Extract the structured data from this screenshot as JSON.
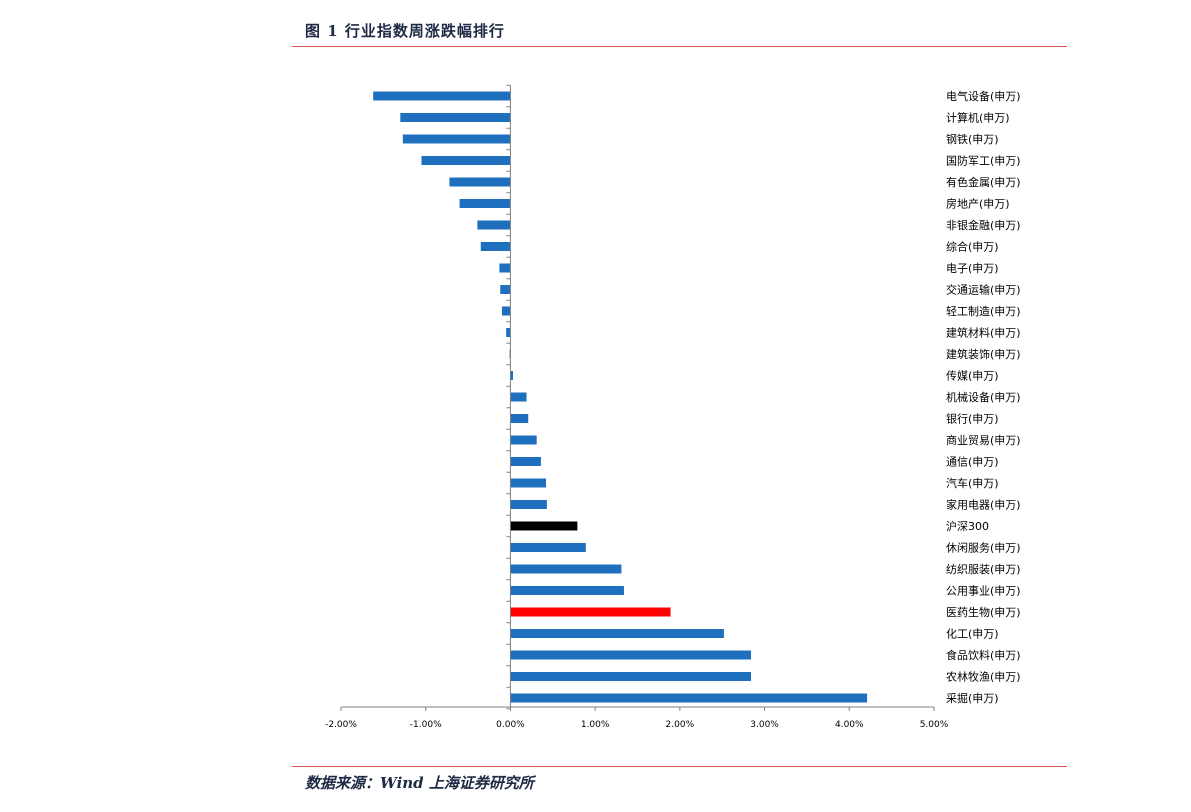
{
  "header": {
    "title": "图 1 行业指数周涨跌幅排行"
  },
  "footer": {
    "source": "数据来源：Wind  上海证券研究所"
  },
  "chart_data": {
    "type": "bar",
    "orientation": "horizontal",
    "title": "图 1 行业指数周涨跌幅排行",
    "xlim": [
      -2.0,
      5.0
    ],
    "x_ticks": [
      -2.0,
      -1.0,
      0.0,
      1.0,
      2.0,
      3.0,
      4.0,
      5.0
    ],
    "tick_labels": [
      "-2.00%",
      "-1.00%",
      "0.00%",
      "1.00%",
      "2.00%",
      "3.00%",
      "4.00%",
      "5.00%"
    ],
    "unit": "%",
    "grid": false,
    "colors": {
      "default": "#1f6fbf",
      "highlight_benchmark": "#000000",
      "highlight_sector": "#ff0000"
    },
    "categories": [
      "电气设备(申万)",
      "计算机(申万)",
      "钢铁(申万)",
      "国防军工(申万)",
      "有色金属(申万)",
      "房地产(申万)",
      "非银金融(申万)",
      "综合(申万)",
      "电子(申万)",
      "交通运输(申万)",
      "轻工制造(申万)",
      "建筑材料(申万)",
      "建筑装饰(申万)",
      "传媒(申万)",
      "机械设备(申万)",
      "银行(申万)",
      "商业贸易(申万)",
      "通信(申万)",
      "汽车(申万)",
      "家用电器(申万)",
      "沪深300",
      "休闲服务(申万)",
      "纺织服装(申万)",
      "公用事业(申万)",
      "医药生物(申万)",
      "化工(申万)",
      "食品饮料(申万)",
      "农林牧渔(申万)",
      "采掘(申万)"
    ],
    "values": [
      -1.62,
      -1.3,
      -1.27,
      -1.05,
      -0.72,
      -0.6,
      -0.39,
      -0.35,
      -0.13,
      -0.12,
      -0.1,
      -0.05,
      -0.01,
      0.03,
      0.19,
      0.21,
      0.31,
      0.36,
      0.42,
      0.43,
      0.79,
      0.89,
      1.31,
      1.34,
      1.89,
      2.52,
      2.84,
      2.84,
      4.21
    ],
    "bar_colors": [
      "#1f6fbf",
      "#1f6fbf",
      "#1f6fbf",
      "#1f6fbf",
      "#1f6fbf",
      "#1f6fbf",
      "#1f6fbf",
      "#1f6fbf",
      "#1f6fbf",
      "#1f6fbf",
      "#1f6fbf",
      "#1f6fbf",
      "#1f6fbf",
      "#1f6fbf",
      "#1f6fbf",
      "#1f6fbf",
      "#1f6fbf",
      "#1f6fbf",
      "#1f6fbf",
      "#1f6fbf",
      "#000000",
      "#1f6fbf",
      "#1f6fbf",
      "#1f6fbf",
      "#ff0000",
      "#1f6fbf",
      "#1f6fbf",
      "#1f6fbf",
      "#1f6fbf"
    ]
  }
}
